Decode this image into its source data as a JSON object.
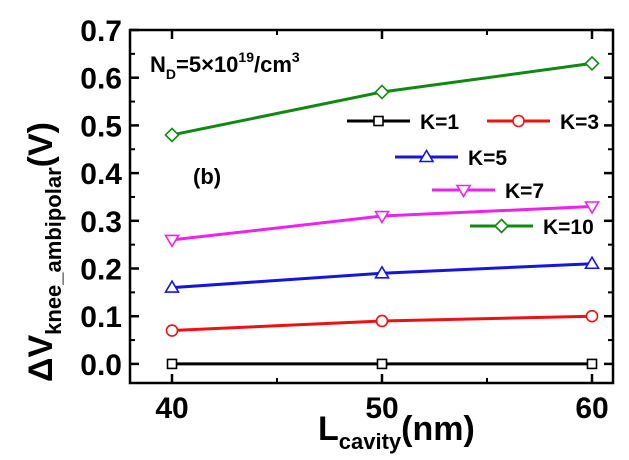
{
  "chart_data": {
    "type": "line",
    "x": [
      40,
      50,
      60
    ],
    "xlim": [
      38,
      61
    ],
    "ylim": [
      -0.04,
      0.7
    ],
    "x_ticks": [
      40,
      50,
      60
    ],
    "y_ticks": [
      0.0,
      0.1,
      0.2,
      0.3,
      0.4,
      0.5,
      0.6,
      0.7
    ],
    "x_tick_labels": [
      "40",
      "50",
      "60"
    ],
    "y_tick_labels": [
      "0.0",
      "0.1",
      "0.2",
      "0.3",
      "0.4",
      "0.5",
      "0.6",
      "0.7"
    ],
    "xlabel": {
      "main": "L",
      "sub": "cavity",
      "rest": "(nm)"
    },
    "ylabel": {
      "main": "ΔV",
      "sub": "knee_ambipolar",
      "rest": "(V)"
    },
    "annotation": {
      "prefix": "N",
      "sub": "D",
      "mid": "=5×10",
      "sup": "19",
      "suffix": "/cm",
      "sup2": "3"
    },
    "panel_label": "(b)",
    "grid": false,
    "legend_placement": "upper-right",
    "series": [
      {
        "name": "K=1",
        "values": [
          0.0,
          0.0,
          0.0
        ],
        "color": "#000000",
        "marker": "square"
      },
      {
        "name": "K=3",
        "values": [
          0.07,
          0.09,
          0.1
        ],
        "color": "#ee1111",
        "marker": "circle"
      },
      {
        "name": "K=5",
        "values": [
          0.16,
          0.19,
          0.21
        ],
        "color": "#1515dd",
        "marker": "triangle-up"
      },
      {
        "name": "K=7",
        "values": [
          0.26,
          0.31,
          0.33
        ],
        "color": "#ee22ee",
        "marker": "triangle-down"
      },
      {
        "name": "K=10",
        "values": [
          0.48,
          0.57,
          0.63
        ],
        "color": "#118811",
        "marker": "diamond"
      }
    ]
  }
}
